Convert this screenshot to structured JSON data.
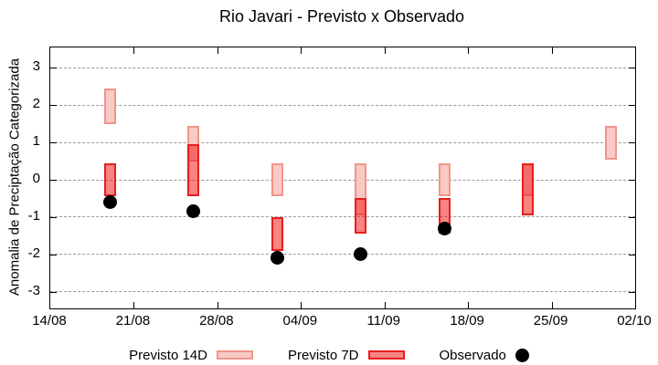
{
  "chart": {
    "title": "Rio Javari - Previsto x Observado",
    "ylabel": "Anomalia de Preciptação Categorizada",
    "legend": [
      {
        "label": "Previsto 14D",
        "type": "box",
        "fill": "#f9cac5",
        "border": "#f0958a"
      },
      {
        "label": "Previsto 7D",
        "type": "box",
        "fill": "#f68383",
        "border": "#e81e1e"
      },
      {
        "label": "Observado",
        "type": "dot",
        "fill": "#000000"
      }
    ]
  },
  "chart_data": {
    "type": "range-bar+scatter",
    "title": "Rio Javari - Previsto x Observado",
    "xlabel": "",
    "ylabel": "Anomalia de Preciptação Categorizada",
    "x_tick_labels": [
      "14/08",
      "21/08",
      "28/08",
      "04/09",
      "11/09",
      "18/09",
      "25/09",
      "02/10"
    ],
    "x_tick_days": [
      0,
      7,
      14,
      21,
      28,
      35,
      42,
      49
    ],
    "x_range_days": [
      0,
      49
    ],
    "y_ticks": [
      3,
      2,
      1,
      0,
      -1,
      -2,
      -3
    ],
    "ylim": [
      -3.5,
      3.5
    ],
    "grid": "horizontal-dashed",
    "legend_position": "bottom-center",
    "series": [
      {
        "name": "Previsto 14D",
        "type": "range-bar",
        "fill": "#f9cac5",
        "border": "#f0958a",
        "points": [
          {
            "date": "19/08",
            "day": 5,
            "low": 1.5,
            "high": 2.45
          },
          {
            "date": "26/08",
            "day": 12,
            "low": 0.5,
            "high": 1.45
          },
          {
            "date": "02/09",
            "day": 19,
            "low": -0.45,
            "high": 0.45
          },
          {
            "date": "09/09",
            "day": 26,
            "low": -0.95,
            "high": 0.45
          },
          {
            "date": "16/09",
            "day": 33,
            "low": -0.45,
            "high": 0.45
          },
          {
            "date": "23/09",
            "day": 40,
            "low": -0.45,
            "high": 0.45
          },
          {
            "date": "30/09",
            "day": 47,
            "low": 0.55,
            "high": 1.45
          }
        ]
      },
      {
        "name": "Previsto 7D",
        "type": "range-bar",
        "fill": "rgba(240,30,30,0.55)",
        "border": "#e81e1e",
        "points": [
          {
            "date": "19/08",
            "day": 5,
            "low": -0.45,
            "high": 0.45
          },
          {
            "date": "26/08",
            "day": 12,
            "low": -0.45,
            "high": 0.95
          },
          {
            "date": "02/09",
            "day": 19,
            "low": -1.9,
            "high": -1.0
          },
          {
            "date": "09/09",
            "day": 26,
            "low": -1.45,
            "high": -0.5
          },
          {
            "date": "16/09",
            "day": 33,
            "low": -1.45,
            "high": -0.5
          },
          {
            "date": "23/09",
            "day": 40,
            "low": -0.95,
            "high": 0.45
          }
        ]
      },
      {
        "name": "Observado",
        "type": "scatter",
        "fill": "#000000",
        "points": [
          {
            "date": "19/08",
            "day": 5,
            "value": -0.6
          },
          {
            "date": "26/08",
            "day": 12,
            "value": -0.85
          },
          {
            "date": "02/09",
            "day": 19,
            "value": -2.1
          },
          {
            "date": "09/09",
            "day": 26,
            "value": -2.0
          },
          {
            "date": "16/09",
            "day": 33,
            "value": -1.3
          }
        ]
      }
    ]
  }
}
